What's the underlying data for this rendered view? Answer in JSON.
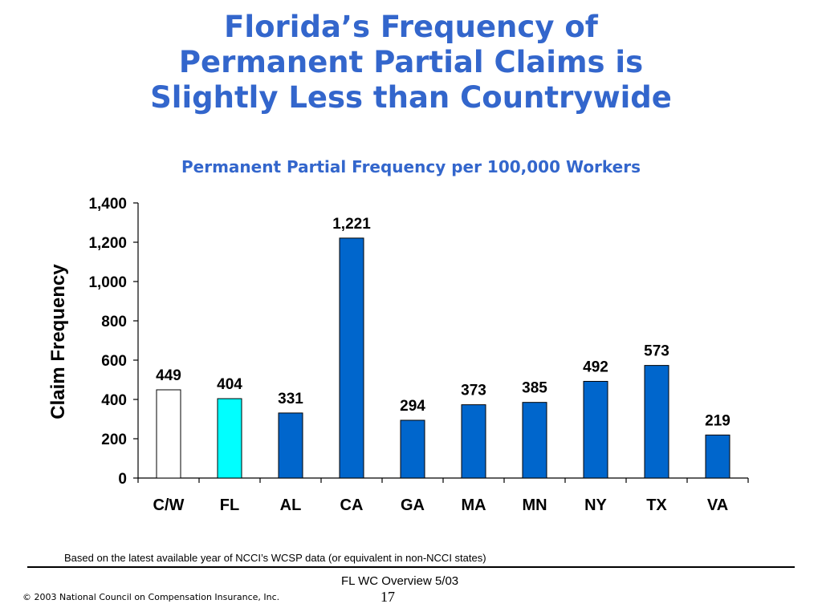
{
  "slide": {
    "title_lines": [
      "Florida’s Frequency of",
      "Permanent Partial Claims is",
      "Slightly Less than Countrywide"
    ],
    "footnote": "Based on the latest available year of NCCI’s WCSP data  (or equivalent in non-NCCI states)",
    "footer_right": "FL WC Overview 5/03",
    "page_number": "17",
    "copyright": "© 2003 National Council on Compensation Insurance, Inc."
  },
  "chart_data": {
    "type": "bar",
    "title": "Permanent Partial Frequency per 100,000 Workers",
    "xlabel": "",
    "ylabel": "Claim Frequency",
    "ylim": [
      0,
      1400
    ],
    "yticks": [
      0,
      200,
      400,
      600,
      800,
      1000,
      1200,
      1400
    ],
    "ytick_labels": [
      "0",
      "200",
      "400",
      "600",
      "800",
      "1,000",
      "1,200",
      "1,400"
    ],
    "categories": [
      "C/W",
      "FL",
      "AL",
      "CA",
      "GA",
      "MA",
      "MN",
      "NY",
      "TX",
      "VA"
    ],
    "values": [
      449,
      404,
      331,
      1221,
      294,
      373,
      385,
      492,
      573,
      219
    ],
    "data_labels": [
      "449",
      "404",
      "331",
      "1,221",
      "294",
      "373",
      "385",
      "492",
      "573",
      "219"
    ],
    "bar_colors": [
      "#ffffff",
      "#00ffff",
      "#0066cc",
      "#0066cc",
      "#0066cc",
      "#0066cc",
      "#0066cc",
      "#0066cc",
      "#0066cc",
      "#0066cc"
    ],
    "grid": false,
    "legend": "none"
  }
}
